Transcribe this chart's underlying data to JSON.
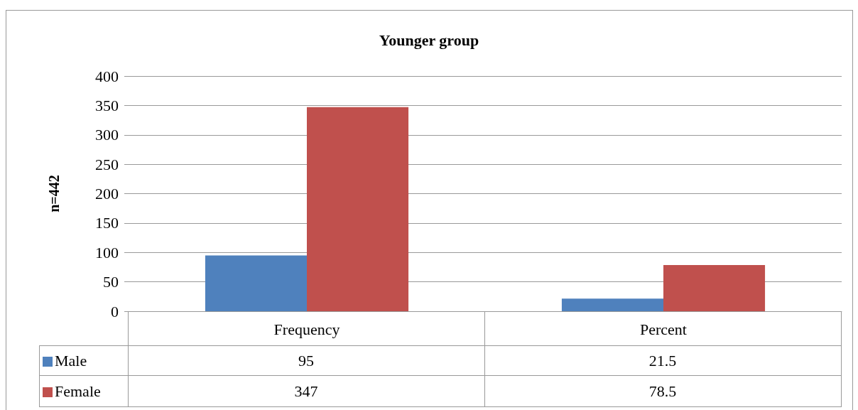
{
  "chart_data": {
    "type": "bar",
    "title": "Younger group",
    "ylabel": "n=442",
    "categories": [
      "Frequency",
      "Percent"
    ],
    "series": [
      {
        "name": "Male",
        "color": "#4f81bd",
        "values": [
          95,
          21.5
        ]
      },
      {
        "name": "Female",
        "color": "#c0504d",
        "values": [
          347,
          78.5
        ]
      }
    ],
    "ylim": [
      0,
      400
    ],
    "yticks": [
      0,
      50,
      100,
      150,
      200,
      250,
      300,
      350,
      400
    ],
    "grid": "y",
    "legend": "bottom",
    "data_labels": true
  }
}
